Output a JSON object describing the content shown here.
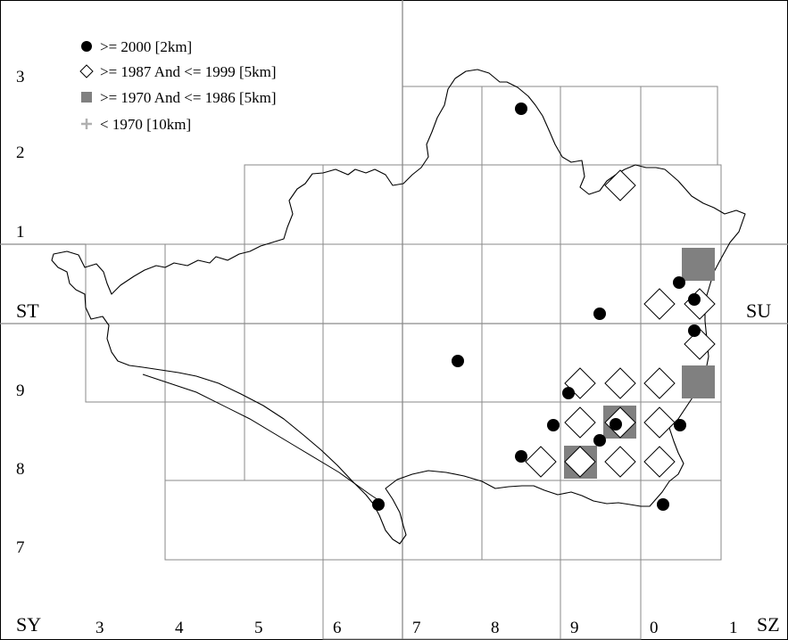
{
  "map": {
    "grid_square_labels": [
      "ST",
      "SU",
      "SY",
      "SZ"
    ],
    "bottom_easting_labels": [
      "3",
      "4",
      "5",
      "6",
      "7",
      "8",
      "9",
      "0",
      "1"
    ],
    "left_northing_labels": [
      "3",
      "2",
      "1",
      "9",
      "8",
      "7"
    ],
    "legend": [
      {
        "symbol": "filled-circle",
        "label": ">= 2000 [2km]",
        "color": "#000000"
      },
      {
        "symbol": "open-diamond",
        "label": ">= 1987 And <= 1999 [5km]",
        "color": "#000000"
      },
      {
        "symbol": "filled-square",
        "label": ">= 1970 And <= 1986 [5km]",
        "color": "#808080"
      },
      {
        "symbol": "plus",
        "label": "< 1970 [10km]",
        "color": "#b0b0b0"
      }
    ]
  }
}
